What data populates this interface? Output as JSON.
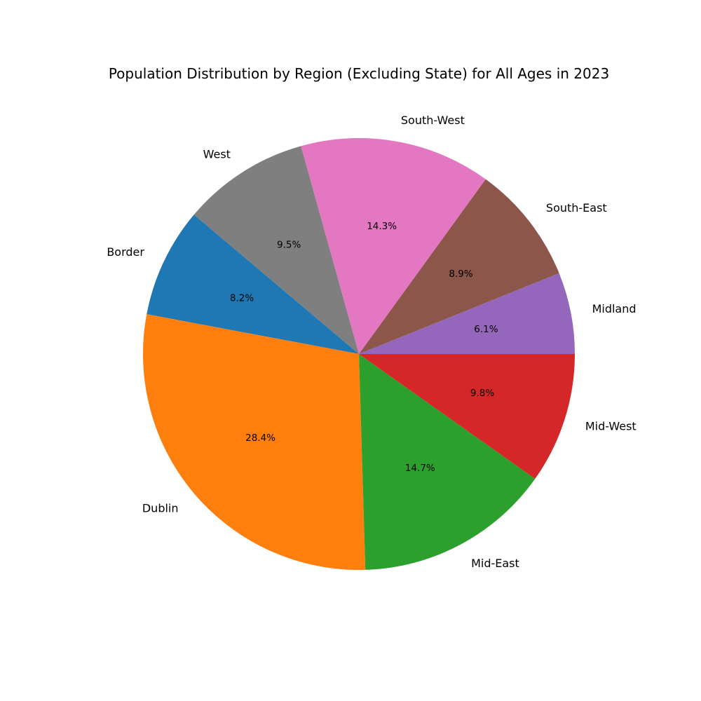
{
  "chart_data": {
    "type": "pie",
    "title": "Population Distribution by Region (Excluding State) for All Ages in 2023",
    "start_angle_deg": 0,
    "direction": "counterclockwise",
    "slices": [
      {
        "label": "Midland",
        "value": 6.1,
        "pct_label": "6.1%",
        "color": "#9467bd"
      },
      {
        "label": "South-East",
        "value": 8.9,
        "pct_label": "8.9%",
        "color": "#8c564b"
      },
      {
        "label": "South-West",
        "value": 14.3,
        "pct_label": "14.3%",
        "color": "#e377c2"
      },
      {
        "label": "West",
        "value": 9.5,
        "pct_label": "9.5%",
        "color": "#7f7f7f"
      },
      {
        "label": "Border",
        "value": 8.2,
        "pct_label": "8.2%",
        "color": "#1f77b4"
      },
      {
        "label": "Dublin",
        "value": 28.4,
        "pct_label": "28.4%",
        "color": "#ff7f0e"
      },
      {
        "label": "Mid-East",
        "value": 14.7,
        "pct_label": "14.7%",
        "color": "#2ca02c"
      },
      {
        "label": "Mid-West",
        "value": 9.8,
        "pct_label": "9.8%",
        "color": "#d62728"
      }
    ]
  }
}
